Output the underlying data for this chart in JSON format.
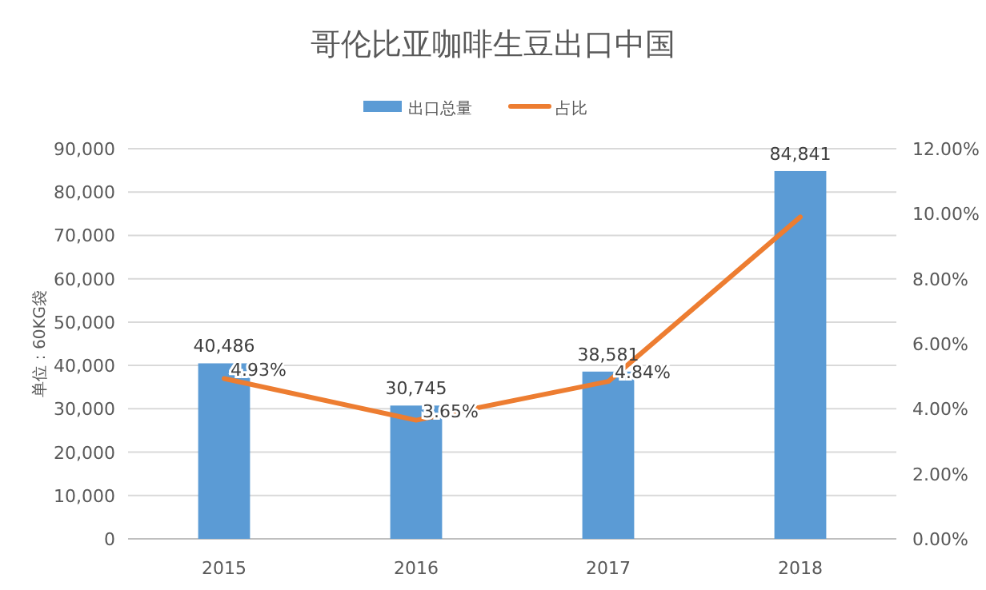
{
  "chart_data": {
    "type": "bar",
    "title": "哥伦比亚咖啡生豆出口中国",
    "ylabel": "单位：60KG袋",
    "categories": [
      "2015",
      "2016",
      "2017",
      "2018"
    ],
    "series": [
      {
        "name": "出口总量",
        "color": "#5b9bd5",
        "values": [
          40486,
          30745,
          38581,
          84841
        ],
        "value_labels": [
          "40,486",
          "30,745",
          "38,581",
          "84,841"
        ]
      },
      {
        "name": "占比",
        "type": "line",
        "axis": "y2",
        "color": "#ed7d31",
        "values": [
          4.93,
          3.65,
          4.84,
          9.9
        ],
        "value_labels": [
          "4.93%",
          "3.65%",
          "4.84%",
          null
        ]
      }
    ],
    "ylim": [
      0,
      90000
    ],
    "yticks": [
      {
        "value": 0,
        "label": "0"
      },
      {
        "value": 10000,
        "label": "10,000"
      },
      {
        "value": 20000,
        "label": "20,000"
      },
      {
        "value": 30000,
        "label": "30,000"
      },
      {
        "value": 40000,
        "label": "40,000"
      },
      {
        "value": 50000,
        "label": "50,000"
      },
      {
        "value": 60000,
        "label": "60,000"
      },
      {
        "value": 70000,
        "label": "70,000"
      },
      {
        "value": 80000,
        "label": "80,000"
      },
      {
        "value": 90000,
        "label": "90,000"
      }
    ],
    "y2lim": [
      0,
      12
    ],
    "y2ticks": [
      {
        "value": 0,
        "label": "0.00%"
      },
      {
        "value": 2,
        "label": "2.00%"
      },
      {
        "value": 4,
        "label": "4.00%"
      },
      {
        "value": 6,
        "label": "6.00%"
      },
      {
        "value": 8,
        "label": "8.00%"
      },
      {
        "value": 10,
        "label": "10.00%"
      },
      {
        "value": 12,
        "label": "12.00%"
      }
    ],
    "grid": "y",
    "legend": "top",
    "marker": "none",
    "line_style": "solid"
  }
}
